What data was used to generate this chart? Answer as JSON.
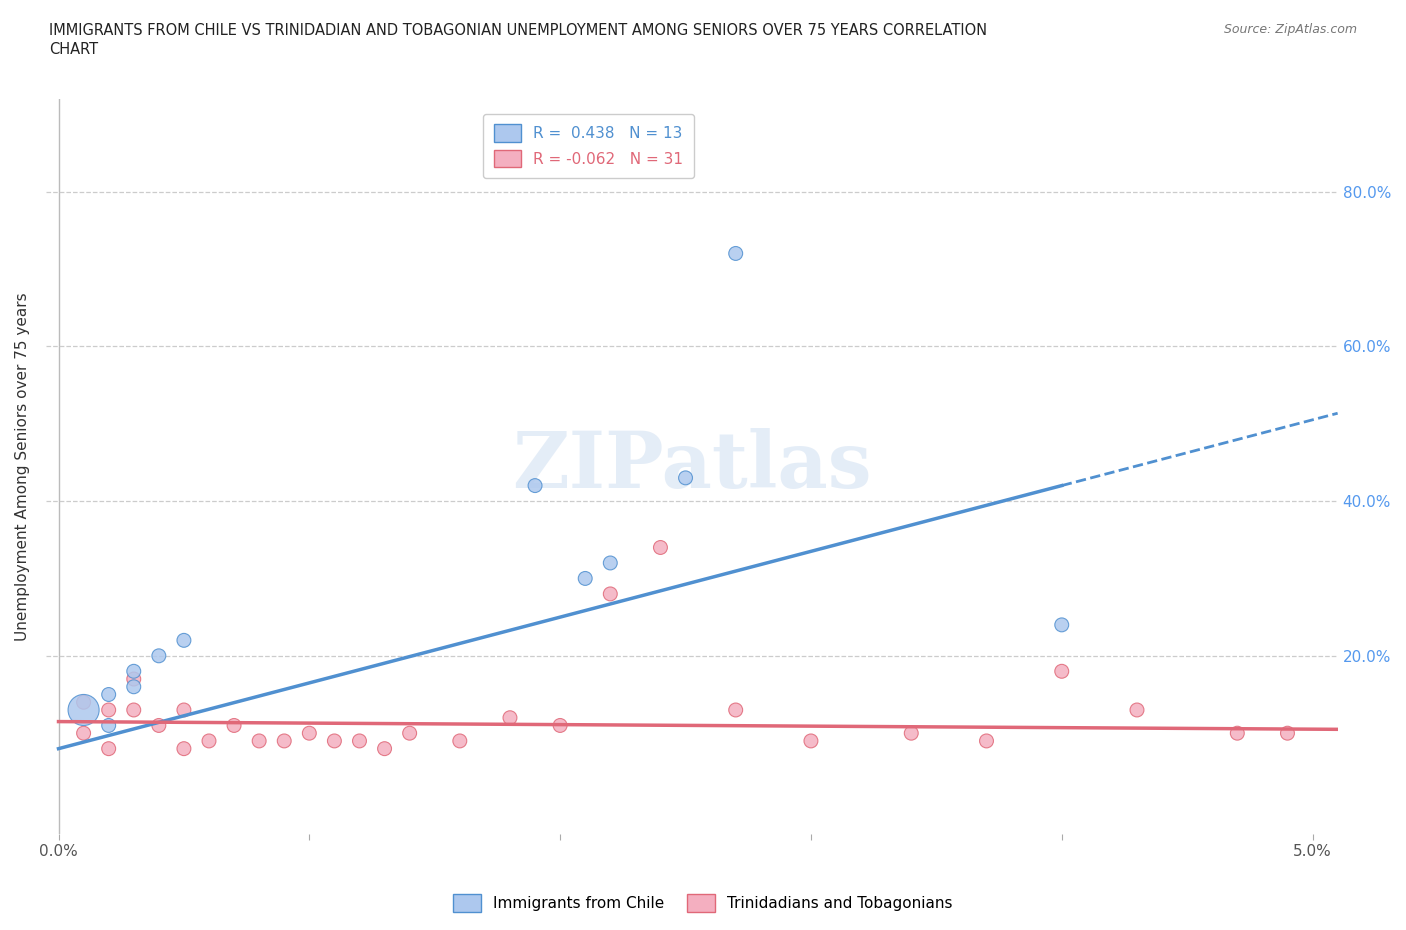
{
  "title_line1": "IMMIGRANTS FROM CHILE VS TRINIDADIAN AND TOBAGONIAN UNEMPLOYMENT AMONG SENIORS OVER 75 YEARS CORRELATION",
  "title_line2": "CHART",
  "source": "Source: ZipAtlas.com",
  "ylabel": "Unemployment Among Seniors over 75 years",
  "xlim": [
    -0.0005,
    0.051
  ],
  "ylim": [
    -0.03,
    0.92
  ],
  "xtick_positions": [
    0.0,
    0.05
  ],
  "xtick_labels": [
    "0.0%",
    "5.0%"
  ],
  "ytick_positions": [
    0.0,
    0.2,
    0.4,
    0.6,
    0.8
  ],
  "ytick_labels_right": [
    "",
    "20.0%",
    "40.0%",
    "60.0%",
    "80.0%"
  ],
  "legend1_label": "R =  0.438   N = 13",
  "legend2_label": "R = -0.062   N = 31",
  "blue_color": "#adc8ee",
  "pink_color": "#f4afc0",
  "blue_line_color": "#5090d0",
  "pink_line_color": "#e06878",
  "gridline_color": "#cccccc",
  "background_color": "#ffffff",
  "chile_x": [
    0.001,
    0.002,
    0.002,
    0.003,
    0.003,
    0.004,
    0.005,
    0.019,
    0.021,
    0.022,
    0.025,
    0.027,
    0.04
  ],
  "chile_y": [
    0.13,
    0.11,
    0.15,
    0.16,
    0.18,
    0.2,
    0.22,
    0.42,
    0.3,
    0.32,
    0.43,
    0.72,
    0.24
  ],
  "chile_size": [
    500,
    100,
    100,
    100,
    100,
    100,
    100,
    100,
    100,
    100,
    100,
    100,
    100
  ],
  "tnt_x": [
    0.001,
    0.001,
    0.002,
    0.002,
    0.003,
    0.003,
    0.004,
    0.005,
    0.005,
    0.006,
    0.007,
    0.008,
    0.009,
    0.01,
    0.011,
    0.012,
    0.013,
    0.014,
    0.016,
    0.018,
    0.02,
    0.022,
    0.024,
    0.027,
    0.03,
    0.034,
    0.037,
    0.04,
    0.043,
    0.047,
    0.049
  ],
  "tnt_y": [
    0.1,
    0.14,
    0.13,
    0.08,
    0.17,
    0.13,
    0.11,
    0.08,
    0.13,
    0.09,
    0.11,
    0.09,
    0.09,
    0.1,
    0.09,
    0.09,
    0.08,
    0.1,
    0.09,
    0.12,
    0.11,
    0.28,
    0.34,
    0.13,
    0.09,
    0.1,
    0.09,
    0.18,
    0.13,
    0.1,
    0.1
  ],
  "tnt_size": [
    100,
    100,
    100,
    100,
    100,
    100,
    100,
    100,
    100,
    100,
    100,
    100,
    100,
    100,
    100,
    100,
    100,
    100,
    100,
    100,
    100,
    100,
    100,
    100,
    100,
    100,
    100,
    100,
    100,
    100,
    100
  ],
  "blue_line_x": [
    0.0,
    0.04,
    0.051
  ],
  "blue_line_y_solid_end": 0.04,
  "pink_line_x": [
    0.0,
    0.051
  ],
  "pink_line_y": [
    0.115,
    0.105
  ]
}
